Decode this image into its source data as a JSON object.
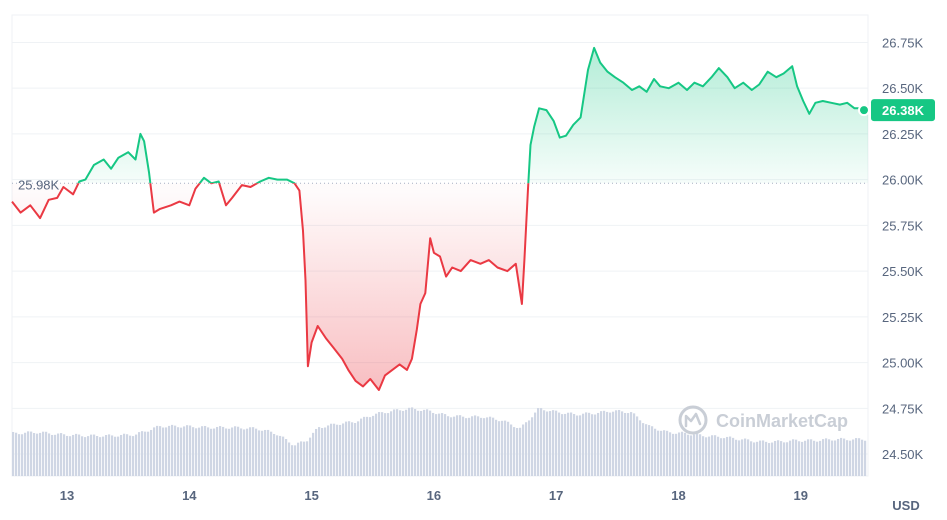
{
  "chart_data": {
    "type": "line",
    "title": "",
    "xlabel": "",
    "ylabel": "",
    "currency": "USD",
    "x_ticks": [
      "13",
      "14",
      "15",
      "16",
      "17",
      "18",
      "19"
    ],
    "x_range": [
      12.55,
      19.55
    ],
    "y_ticks": [
      "24.50K",
      "24.75K",
      "25.00K",
      "25.25K",
      "25.50K",
      "25.75K",
      "26.00K",
      "26.25K",
      "26.50K",
      "26.75K"
    ],
    "y_tick_values": [
      24500,
      24750,
      25000,
      25250,
      25500,
      25750,
      26000,
      26250,
      26500,
      26750
    ],
    "ylim": [
      24380,
      26900
    ],
    "baseline": {
      "value": 25980,
      "label": "25.98K"
    },
    "current": {
      "value": 26380,
      "label": "26.38K"
    },
    "colors": {
      "above": "#16c784",
      "below": "#ea3943",
      "grid": "#eff2f5",
      "volume": "#cfd6e4"
    },
    "grid": true,
    "watermark": "CoinMarketCap",
    "price": {
      "name": "",
      "points": [
        [
          12.55,
          25880
        ],
        [
          12.62,
          25820
        ],
        [
          12.7,
          25860
        ],
        [
          12.78,
          25790
        ],
        [
          12.85,
          25890
        ],
        [
          12.92,
          25900
        ],
        [
          12.97,
          25960
        ],
        [
          13.05,
          25920
        ],
        [
          13.1,
          25990
        ],
        [
          13.15,
          26000
        ],
        [
          13.22,
          26080
        ],
        [
          13.3,
          26110
        ],
        [
          13.36,
          26060
        ],
        [
          13.42,
          26120
        ],
        [
          13.5,
          26150
        ],
        [
          13.56,
          26110
        ],
        [
          13.6,
          26250
        ],
        [
          13.63,
          26210
        ],
        [
          13.67,
          26040
        ],
        [
          13.71,
          25820
        ],
        [
          13.76,
          25840
        ],
        [
          13.85,
          25860
        ],
        [
          13.92,
          25880
        ],
        [
          14.0,
          25860
        ],
        [
          14.05,
          25950
        ],
        [
          14.12,
          26010
        ],
        [
          14.18,
          25980
        ],
        [
          14.24,
          25990
        ],
        [
          14.3,
          25860
        ],
        [
          14.35,
          25900
        ],
        [
          14.43,
          25970
        ],
        [
          14.5,
          25960
        ],
        [
          14.58,
          25990
        ],
        [
          14.65,
          26010
        ],
        [
          14.72,
          26000
        ],
        [
          14.8,
          26000
        ],
        [
          14.86,
          25980
        ],
        [
          14.9,
          25940
        ],
        [
          14.93,
          25720
        ],
        [
          14.95,
          25450
        ],
        [
          14.97,
          24980
        ],
        [
          15.0,
          25110
        ],
        [
          15.05,
          25200
        ],
        [
          15.12,
          25130
        ],
        [
          15.18,
          25080
        ],
        [
          15.25,
          25020
        ],
        [
          15.3,
          24960
        ],
        [
          15.36,
          24900
        ],
        [
          15.42,
          24870
        ],
        [
          15.48,
          24910
        ],
        [
          15.55,
          24850
        ],
        [
          15.6,
          24930
        ],
        [
          15.66,
          24960
        ],
        [
          15.72,
          24990
        ],
        [
          15.78,
          24960
        ],
        [
          15.82,
          25020
        ],
        [
          15.86,
          25180
        ],
        [
          15.89,
          25320
        ],
        [
          15.93,
          25380
        ],
        [
          15.97,
          25680
        ],
        [
          16.0,
          25600
        ],
        [
          16.05,
          25580
        ],
        [
          16.1,
          25470
        ],
        [
          16.15,
          25520
        ],
        [
          16.22,
          25500
        ],
        [
          16.3,
          25560
        ],
        [
          16.38,
          25540
        ],
        [
          16.45,
          25560
        ],
        [
          16.52,
          25520
        ],
        [
          16.6,
          25500
        ],
        [
          16.67,
          25540
        ],
        [
          16.72,
          25320
        ],
        [
          16.74,
          25560
        ],
        [
          16.77,
          25950
        ],
        [
          16.79,
          26190
        ],
        [
          16.82,
          26290
        ],
        [
          16.86,
          26390
        ],
        [
          16.92,
          26380
        ],
        [
          16.98,
          26320
        ],
        [
          17.03,
          26230
        ],
        [
          17.08,
          26240
        ],
        [
          17.14,
          26300
        ],
        [
          17.2,
          26340
        ],
        [
          17.26,
          26600
        ],
        [
          17.31,
          26720
        ],
        [
          17.36,
          26640
        ],
        [
          17.42,
          26590
        ],
        [
          17.48,
          26560
        ],
        [
          17.55,
          26530
        ],
        [
          17.62,
          26490
        ],
        [
          17.68,
          26510
        ],
        [
          17.74,
          26480
        ],
        [
          17.8,
          26550
        ],
        [
          17.85,
          26510
        ],
        [
          17.92,
          26500
        ],
        [
          18.0,
          26530
        ],
        [
          18.07,
          26490
        ],
        [
          18.13,
          26530
        ],
        [
          18.2,
          26510
        ],
        [
          18.27,
          26560
        ],
        [
          18.33,
          26610
        ],
        [
          18.4,
          26560
        ],
        [
          18.46,
          26500
        ],
        [
          18.53,
          26530
        ],
        [
          18.6,
          26490
        ],
        [
          18.66,
          26520
        ],
        [
          18.73,
          26590
        ],
        [
          18.8,
          26560
        ],
        [
          18.86,
          26580
        ],
        [
          18.93,
          26620
        ],
        [
          18.97,
          26510
        ],
        [
          19.02,
          26430
        ],
        [
          19.07,
          26360
        ],
        [
          19.12,
          26420
        ],
        [
          19.18,
          26430
        ],
        [
          19.25,
          26420
        ],
        [
          19.32,
          26410
        ],
        [
          19.38,
          26420
        ],
        [
          19.44,
          26390
        ],
        [
          19.5,
          26390
        ],
        [
          19.55,
          26380
        ]
      ]
    },
    "volume": {
      "name": "",
      "unit": "relative",
      "points": [
        [
          12.55,
          0.36
        ],
        [
          12.75,
          0.37
        ],
        [
          12.95,
          0.35
        ],
        [
          13.15,
          0.34
        ],
        [
          13.35,
          0.34
        ],
        [
          13.55,
          0.35
        ],
        [
          13.75,
          0.42
        ],
        [
          13.95,
          0.42
        ],
        [
          14.15,
          0.41
        ],
        [
          14.35,
          0.41
        ],
        [
          14.55,
          0.4
        ],
        [
          14.7,
          0.36
        ],
        [
          14.85,
          0.26
        ],
        [
          14.95,
          0.3
        ],
        [
          15.05,
          0.41
        ],
        [
          15.2,
          0.44
        ],
        [
          15.35,
          0.46
        ],
        [
          15.5,
          0.52
        ],
        [
          15.65,
          0.55
        ],
        [
          15.8,
          0.57
        ],
        [
          15.95,
          0.55
        ],
        [
          16.1,
          0.51
        ],
        [
          16.25,
          0.5
        ],
        [
          16.4,
          0.5
        ],
        [
          16.55,
          0.47
        ],
        [
          16.7,
          0.4
        ],
        [
          16.85,
          0.57
        ],
        [
          17.0,
          0.54
        ],
        [
          17.15,
          0.52
        ],
        [
          17.3,
          0.53
        ],
        [
          17.45,
          0.55
        ],
        [
          17.6,
          0.54
        ],
        [
          17.75,
          0.42
        ],
        [
          17.9,
          0.37
        ],
        [
          18.05,
          0.36
        ],
        [
          18.2,
          0.34
        ],
        [
          18.35,
          0.33
        ],
        [
          18.5,
          0.31
        ],
        [
          18.65,
          0.29
        ],
        [
          18.8,
          0.29
        ],
        [
          18.95,
          0.3
        ],
        [
          19.1,
          0.3
        ],
        [
          19.25,
          0.31
        ],
        [
          19.4,
          0.31
        ],
        [
          19.55,
          0.31
        ]
      ]
    }
  }
}
